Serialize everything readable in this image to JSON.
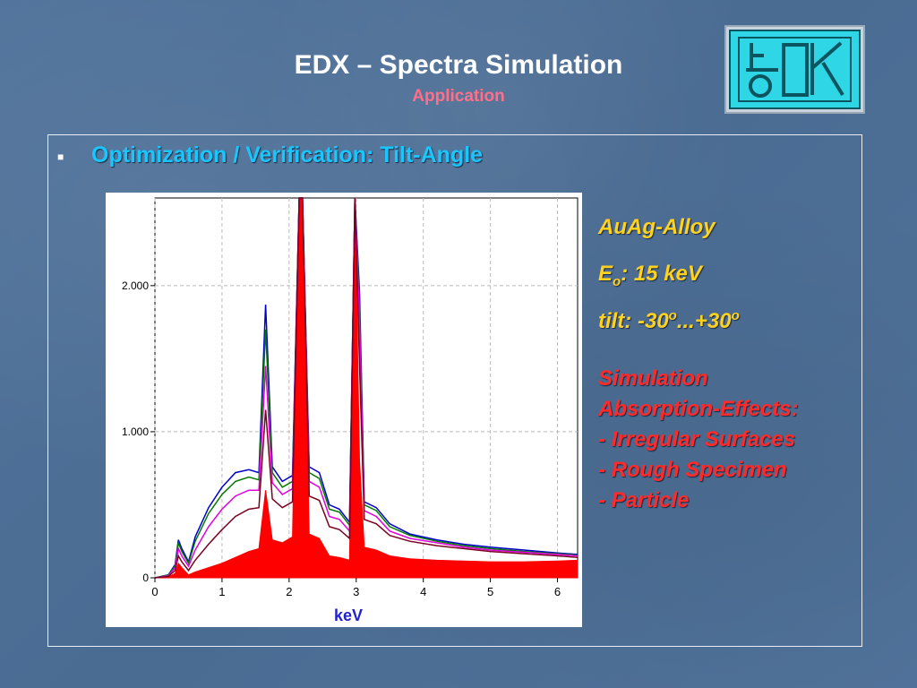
{
  "slide": {
    "title": "EDX – Spectra Simulation",
    "subtitle": "Application",
    "bullet": "■",
    "heading": "Optimization / Verification:  Tilt-Angle"
  },
  "info": {
    "alloy": "AuAg-Alloy",
    "energy_prefix": "E",
    "energy_sub": "o",
    "energy_value": ": 15 keV",
    "tilt_prefix": "tilt: -30",
    "tilt_sup1": "o",
    "tilt_mid": "...+30",
    "tilt_sup2": "o",
    "sim_lines": [
      "Simulation",
      "Absorption-Effects:",
      "- Irregular Surfaces",
      "- Rough Specimen",
      "- Particle"
    ]
  },
  "colors": {
    "background": "#4d6f97",
    "heading": "#19c7ff",
    "yellow_text": "#ffd21f",
    "red_text": "#ff2a2a",
    "subtitle": "#ff6f8a",
    "logo_cyan": "#2fd6e6"
  },
  "logo": {
    "icon": "institute-logo-icon"
  },
  "chart_data": {
    "type": "line",
    "xlabel": "keV",
    "ylabel": "",
    "xlim": [
      0,
      6.3
    ],
    "ylim": [
      0,
      2600
    ],
    "xticks": [
      0,
      1,
      2,
      3,
      4,
      5,
      6
    ],
    "xtick_labels": [
      "0",
      "1",
      "2",
      "3",
      "4",
      "5",
      "6"
    ],
    "yticks": [
      0,
      1000,
      2000
    ],
    "ytick_labels": [
      "0",
      "1.000",
      "2.000"
    ],
    "grid": true,
    "x": [
      0.0,
      0.2,
      0.3,
      0.35,
      0.4,
      0.5,
      0.6,
      0.8,
      1.0,
      1.2,
      1.4,
      1.55,
      1.65,
      1.75,
      1.9,
      2.05,
      2.15,
      2.2,
      2.3,
      2.45,
      2.6,
      2.75,
      2.9,
      2.98,
      3.05,
      3.12,
      3.3,
      3.5,
      3.8,
      4.2,
      4.6,
      5.0,
      5.5,
      6.0,
      6.3
    ],
    "series": [
      {
        "color": "#0000cc",
        "values": [
          0,
          20,
          90,
          260,
          200,
          110,
          280,
          480,
          620,
          720,
          740,
          720,
          1870,
          760,
          660,
          700,
          2600,
          2600,
          760,
          720,
          500,
          470,
          380,
          2600,
          1950,
          520,
          480,
          370,
          300,
          260,
          230,
          210,
          190,
          170,
          160
        ]
      },
      {
        "color": "#007a00",
        "values": [
          0,
          20,
          80,
          240,
          180,
          100,
          250,
          440,
          570,
          660,
          690,
          670,
          1700,
          720,
          620,
          660,
          2600,
          2600,
          720,
          680,
          470,
          450,
          360,
          2600,
          1850,
          500,
          460,
          350,
          290,
          250,
          220,
          200,
          180,
          165,
          155
        ]
      },
      {
        "color": "#e000e0",
        "values": [
          0,
          15,
          70,
          200,
          150,
          80,
          190,
          350,
          470,
          560,
          600,
          600,
          1450,
          650,
          570,
          610,
          2600,
          2600,
          660,
          620,
          420,
          400,
          320,
          2600,
          1750,
          460,
          420,
          320,
          270,
          240,
          210,
          190,
          175,
          160,
          150
        ]
      },
      {
        "color": "#7a0020",
        "values": [
          0,
          10,
          50,
          150,
          110,
          50,
          120,
          230,
          330,
          420,
          470,
          480,
          1150,
          540,
          480,
          520,
          2600,
          2600,
          560,
          530,
          350,
          330,
          270,
          2600,
          1450,
          400,
          370,
          290,
          250,
          220,
          200,
          180,
          165,
          150,
          140
        ]
      },
      {
        "color": "#ff0000",
        "fill": true,
        "values": [
          0,
          5,
          30,
          100,
          70,
          20,
          40,
          70,
          100,
          140,
          180,
          200,
          600,
          260,
          240,
          280,
          2600,
          2600,
          300,
          270,
          150,
          140,
          120,
          2600,
          800,
          210,
          190,
          150,
          130,
          120,
          115,
          110,
          110,
          115,
          120
        ]
      }
    ]
  }
}
